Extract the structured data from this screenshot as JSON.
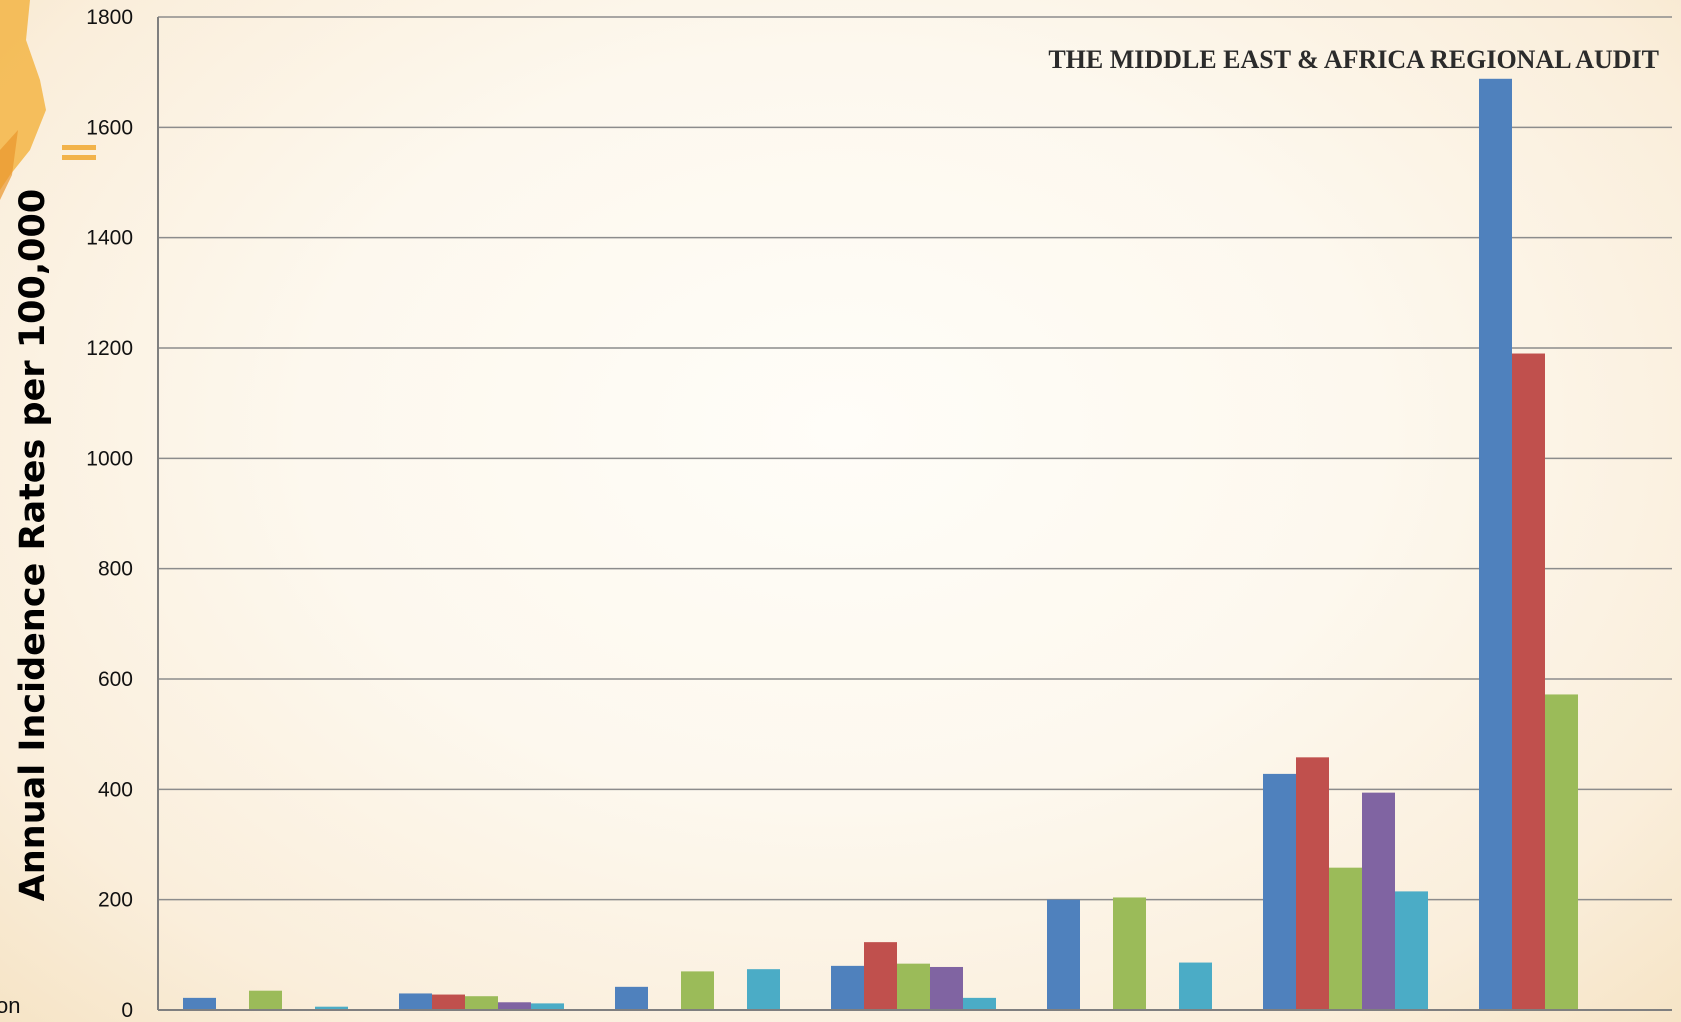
{
  "header": {
    "text": "THE MIDDLE EAST & AFRICA REGIONAL AUDIT"
  },
  "edge_label": "on",
  "colors": {
    "series": [
      "#4f81bd",
      "#c0504d",
      "#9bbb59",
      "#8064a2",
      "#4bacc6"
    ],
    "gridline": "#8c8c8c",
    "axis": "#7f7f7f",
    "logo": "#f0a830"
  },
  "chart_data": {
    "type": "bar",
    "title": "",
    "xlabel": "",
    "ylabel": "Annual Incidence Rates per 100,000",
    "ylim": [
      0,
      1800
    ],
    "yticks": [
      0,
      200,
      400,
      600,
      800,
      1000,
      1200,
      1400,
      1600,
      1800
    ],
    "grid": true,
    "categories": [
      "",
      "",
      "",
      "",
      "",
      "",
      ""
    ],
    "series": [
      {
        "values": [
          22,
          30,
          42,
          80,
          200,
          428,
          1688
        ]
      },
      {
        "values": [
          0,
          28,
          0,
          123,
          0,
          458,
          1190
        ]
      },
      {
        "values": [
          35,
          25,
          70,
          84,
          204,
          258,
          572
        ]
      },
      {
        "values": [
          0,
          14,
          0,
          78,
          0,
          394,
          0
        ]
      },
      {
        "values": [
          6,
          12,
          74,
          22,
          86,
          215,
          0
        ]
      }
    ]
  }
}
